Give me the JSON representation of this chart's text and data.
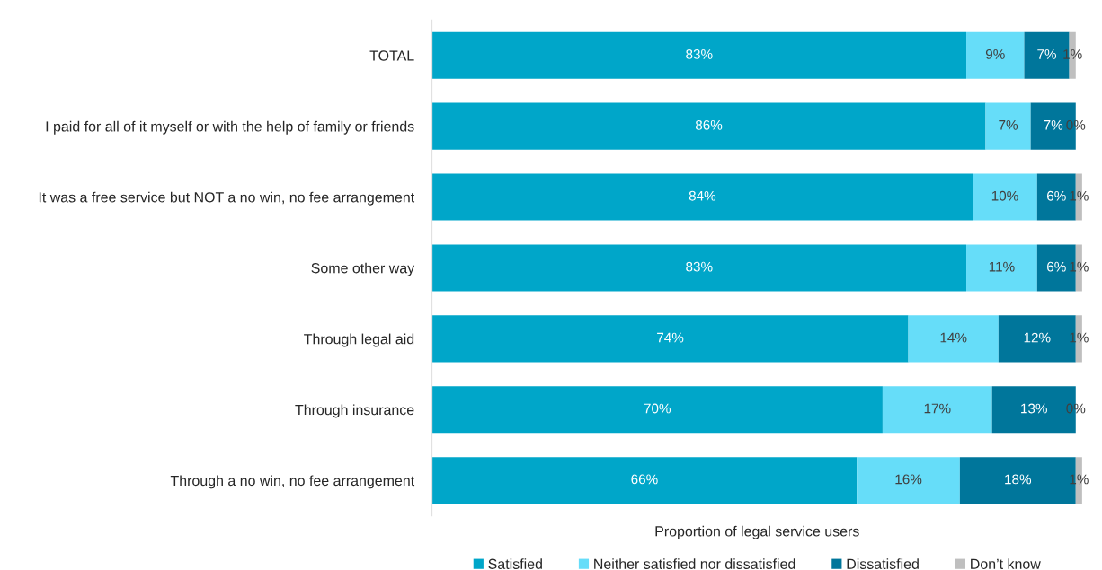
{
  "chart_data": {
    "type": "bar",
    "orientation": "horizontal",
    "stacked": true,
    "xlabel": "Proportion of legal service users",
    "legend": "bottom",
    "grid": false,
    "categories": [
      "TOTAL",
      "I paid for all of it myself or with the help of family or friends",
      "It was a free service but NOT a no win, no fee arrangement",
      "Some other way",
      "Through legal aid",
      "Through insurance",
      "Through a no win, no fee arrangement"
    ],
    "series": [
      {
        "name": "Satisfied",
        "color": "#00a6c9",
        "values": [
          83,
          86,
          84,
          83,
          74,
          70,
          66
        ],
        "value_labels": [
          "83%",
          "86%",
          "84%",
          "83%",
          "74%",
          "70%",
          "66%"
        ]
      },
      {
        "name": "Neither satisfied nor dissatisfied",
        "color": "#66ddf9",
        "values": [
          9,
          7,
          10,
          11,
          14,
          17,
          16
        ],
        "value_labels": [
          "9%",
          "7%",
          "10%",
          "11%",
          "14%",
          "17%",
          "16%"
        ]
      },
      {
        "name": "Dissatisfied",
        "color": "#00769b",
        "values": [
          7,
          7,
          6,
          6,
          12,
          13,
          18
        ],
        "value_labels": [
          "7%",
          "7%",
          "6%",
          "6%",
          "12%",
          "13%",
          "18%"
        ]
      },
      {
        "name": "Don’t know",
        "color": "#bfbfbf",
        "values": [
          1,
          0,
          1,
          1,
          1,
          0,
          1
        ],
        "value_labels": [
          "1%",
          "0%",
          "1%",
          "1%",
          "1%",
          "0%",
          "1%"
        ]
      }
    ]
  }
}
